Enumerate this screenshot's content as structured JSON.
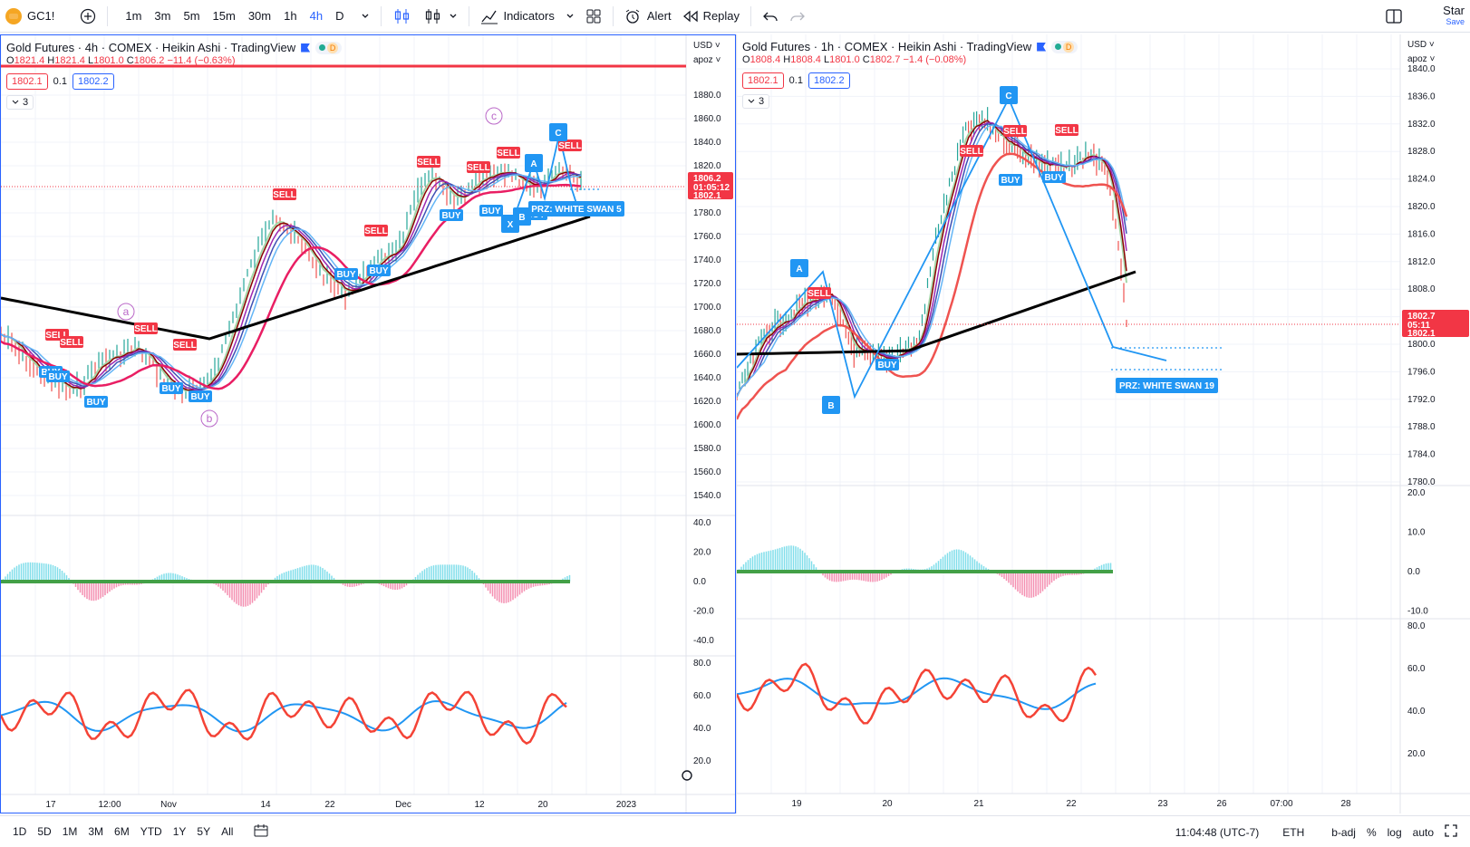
{
  "toolbar": {
    "symbol": "GC1!",
    "timeframes": [
      "1m",
      "3m",
      "5m",
      "15m",
      "30m",
      "1h",
      "4h",
      "D"
    ],
    "active_timeframe": "4h",
    "indicators_label": "Indicators",
    "alert_label": "Alert",
    "replay_label": "Replay",
    "star_label": "Star",
    "save_label": "Save"
  },
  "bottom": {
    "ranges": [
      "1D",
      "5D",
      "1M",
      "3M",
      "6M",
      "YTD",
      "1Y",
      "5Y",
      "All"
    ],
    "time": "11:04:48 (UTC-7)",
    "session": "ETH",
    "adj": "b-adj",
    "percent": "%",
    "log": "log",
    "auto": "auto"
  },
  "colors": {
    "up": "#26a69a",
    "down": "#ef5350",
    "accent": "#2962ff",
    "sell": "#f23645",
    "buy": "#2196f3"
  },
  "left": {
    "title": "Gold Futures · 4h · COMEX · Heikin Ashi · TradingView",
    "ohlc": {
      "o": "1821.4",
      "h": "1821.4",
      "l": "1801.0",
      "c": "1806.2",
      "chg": "−11.4 (−0.63%)"
    },
    "bid": "1802.1",
    "spread": "0.1",
    "ask": "1802.2",
    "collapse_count": "3",
    "currency": "USD",
    "scale_mode": "apoz",
    "price_ticks": [
      "1880.0",
      "1860.0",
      "1840.0",
      "1820.0",
      "1800.0",
      "1780.0",
      "1760.0",
      "1740.0",
      "1720.0",
      "1700.0",
      "1680.0",
      "1660.0",
      "1640.0",
      "1620.0",
      "1600.0",
      "1580.0",
      "1560.0",
      "1540.0"
    ],
    "last_price": "1806.2",
    "countdown": "01:05:12",
    "bid_label": "1802.1",
    "osc_ticks": [
      "40.0",
      "20.0",
      "0.0",
      "-20.0",
      "-40.0"
    ],
    "rsi_ticks": [
      "80.0",
      "60.0",
      "40.0",
      "20.0"
    ],
    "time_ticks": [
      "17",
      "12:00",
      "Nov",
      "14",
      "22",
      "Dec",
      "12",
      "20",
      "2023"
    ],
    "wave_labels": [
      "a",
      "b",
      "c"
    ],
    "pattern_labels": [
      "A",
      "B",
      "C",
      "X"
    ],
    "prz_label": "PRZ: WHITE SWAN 5",
    "sell_label": "SELL",
    "buy_label": "BUY"
  },
  "right": {
    "title": "Gold Futures · 1h · COMEX · Heikin Ashi · TradingView",
    "ohlc": {
      "o": "1808.4",
      "h": "1808.4",
      "l": "1801.0",
      "c": "1802.7",
      "chg": "−1.4 (−0.08%)"
    },
    "bid": "1802.1",
    "spread": "0.1",
    "ask": "1802.2",
    "collapse_count": "3",
    "currency": "USD",
    "scale_mode": "apoz",
    "price_ticks": [
      "1840.0",
      "1836.0",
      "1832.0",
      "1828.0",
      "1824.0",
      "1820.0",
      "1816.0",
      "1812.0",
      "1808.0",
      "1804.0",
      "1800.0",
      "1796.0",
      "1792.0",
      "1788.0",
      "1784.0",
      "1780.0"
    ],
    "last_price": "1802.7",
    "countdown": "05:11",
    "bid_label": "1802.1",
    "osc_ticks": [
      "20.0",
      "10.0",
      "0.0",
      "-10.0"
    ],
    "rsi_ticks": [
      "80.0",
      "60.0",
      "40.0",
      "20.0"
    ],
    "time_ticks": [
      "19",
      "20",
      "21",
      "22",
      "23",
      "26",
      "07:00",
      "28"
    ],
    "pattern_labels": [
      "A",
      "B",
      "C"
    ],
    "prz_label": "PRZ: WHITE SWAN 19",
    "sell_label": "SELL",
    "buy_label": "BUY"
  }
}
